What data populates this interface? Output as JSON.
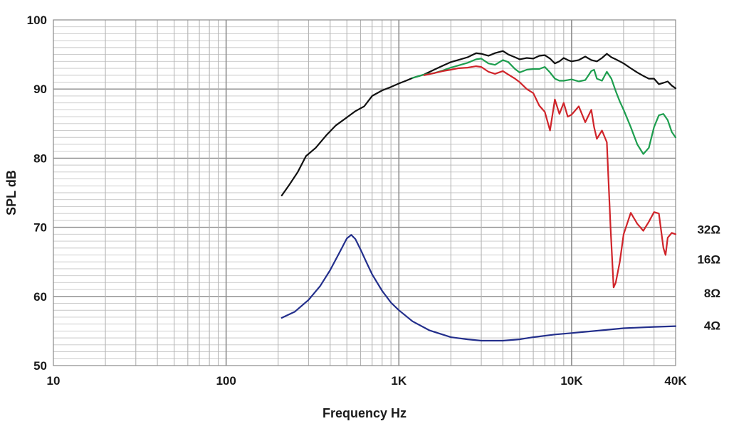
{
  "chart_data": {
    "type": "line",
    "xlabel": "Frequency Hz",
    "ylabel": "SPL dB",
    "xscale": "log",
    "xlim": [
      10,
      40000
    ],
    "ylim": [
      50,
      100
    ],
    "grid": true,
    "x_tick_labels": [
      {
        "value": 10,
        "label": "10"
      },
      {
        "value": 100,
        "label": "100"
      },
      {
        "value": 1000,
        "label": "1K"
      },
      {
        "value": 10000,
        "label": "10K"
      },
      {
        "value": 40000,
        "label": "40K"
      }
    ],
    "y_tick_labels": [
      {
        "value": 50,
        "label": "50"
      },
      {
        "value": 60,
        "label": "60"
      },
      {
        "value": 70,
        "label": "70"
      },
      {
        "value": 80,
        "label": "80"
      },
      {
        "value": 90,
        "label": "90"
      },
      {
        "value": 100,
        "label": "100"
      }
    ],
    "right_labels": [
      {
        "text": "32Ω",
        "value": 69.7
      },
      {
        "text": "16Ω",
        "value": 65.4
      },
      {
        "text": "8Ω",
        "value": 60.5
      },
      {
        "text": "4Ω",
        "value": 55.8
      }
    ],
    "series": [
      {
        "color": "#111111",
        "x": [
          210,
          230,
          260,
          290,
          330,
          380,
          430,
          500,
          560,
          630,
          700,
          800,
          900,
          1000,
          1100,
          1200,
          1400,
          1600,
          1800,
          2000,
          2200,
          2500,
          2800,
          3000,
          3300,
          3600,
          4000,
          4300,
          4700,
          5000,
          5500,
          6000,
          6500,
          7000,
          7500,
          8000,
          8500,
          9000,
          9500,
          10000,
          11000,
          12000,
          13000,
          14000,
          15000,
          16000,
          17000,
          18000,
          19000,
          20000,
          22000,
          24000,
          26000,
          28000,
          30000,
          32000,
          34000,
          36000,
          38000,
          40000
        ],
        "y": [
          74.6,
          76.0,
          78.0,
          80.3,
          81.5,
          83.3,
          84.7,
          85.9,
          86.8,
          87.5,
          89.0,
          89.8,
          90.3,
          90.8,
          91.2,
          91.6,
          92.1,
          92.8,
          93.4,
          93.9,
          94.2,
          94.6,
          95.2,
          95.1,
          94.8,
          95.2,
          95.5,
          95.0,
          94.6,
          94.3,
          94.5,
          94.4,
          94.8,
          94.9,
          94.4,
          93.7,
          94.0,
          94.5,
          94.2,
          94.0,
          94.2,
          94.7,
          94.2,
          94.0,
          94.5,
          95.1,
          94.6,
          94.3,
          94.0,
          93.7,
          93.0,
          92.4,
          91.9,
          91.5,
          91.5,
          90.7,
          90.9,
          91.1,
          90.5,
          90.1
        ]
      },
      {
        "color": "#1e9e4f",
        "x": [
          1200,
          1400,
          1600,
          1800,
          2000,
          2200,
          2500,
          2800,
          3000,
          3300,
          3600,
          4000,
          4300,
          4700,
          5000,
          5500,
          6000,
          6500,
          7000,
          7500,
          8000,
          8500,
          9000,
          9500,
          10000,
          11000,
          12000,
          13000,
          13500,
          14000,
          15000,
          16000,
          17000,
          18000,
          19000,
          20000,
          22000,
          24000,
          26000,
          28000,
          30000,
          32000,
          34000,
          36000,
          38000,
          40000
        ],
        "y": [
          91.6,
          92.1,
          92.3,
          92.7,
          93.1,
          93.4,
          93.8,
          94.3,
          94.4,
          93.7,
          93.5,
          94.2,
          93.9,
          92.9,
          92.4,
          92.8,
          92.9,
          92.9,
          93.2,
          92.4,
          91.5,
          91.2,
          91.2,
          91.3,
          91.4,
          91.1,
          91.3,
          92.6,
          92.8,
          91.5,
          91.2,
          92.5,
          91.5,
          89.7,
          88.2,
          87.0,
          84.5,
          82.0,
          80.6,
          81.5,
          84.5,
          86.2,
          86.4,
          85.5,
          83.8,
          83.0
        ]
      },
      {
        "color": "#d0242a",
        "x": [
          1400,
          1600,
          1800,
          2000,
          2200,
          2500,
          2800,
          3000,
          3300,
          3600,
          4000,
          4300,
          4700,
          5000,
          5500,
          6000,
          6500,
          7000,
          7500,
          8000,
          8500,
          9000,
          9500,
          10000,
          11000,
          12000,
          13000,
          13500,
          14000,
          15000,
          16000,
          16800,
          17500,
          18000,
          19000,
          20000,
          22000,
          24000,
          26000,
          28000,
          30000,
          32000,
          34000,
          35000,
          36000,
          38000,
          40000
        ],
        "y": [
          92.0,
          92.3,
          92.6,
          92.8,
          93.0,
          93.1,
          93.3,
          93.2,
          92.5,
          92.2,
          92.6,
          92.1,
          91.5,
          91.0,
          90.0,
          89.4,
          87.6,
          86.7,
          84.0,
          88.5,
          86.4,
          88.0,
          86.0,
          86.3,
          87.5,
          85.2,
          87.0,
          84.5,
          82.8,
          84.0,
          82.3,
          70.0,
          61.3,
          62.0,
          65.0,
          69.0,
          72.1,
          70.5,
          69.5,
          70.8,
          72.2,
          72.0,
          67.0,
          66.0,
          68.5,
          69.2,
          69.0
        ]
      },
      {
        "color": "#232f8c",
        "x": [
          210,
          250,
          300,
          350,
          400,
          450,
          500,
          530,
          560,
          600,
          650,
          700,
          800,
          900,
          1000,
          1200,
          1500,
          2000,
          2500,
          3000,
          3500,
          4000,
          5000,
          6000,
          8000,
          10000,
          15000,
          20000,
          30000,
          40000
        ],
        "y": [
          56.9,
          57.8,
          59.5,
          61.5,
          63.8,
          66.2,
          68.4,
          68.9,
          68.3,
          66.8,
          64.9,
          63.2,
          60.8,
          59.1,
          58.0,
          56.4,
          55.1,
          54.1,
          53.8,
          53.6,
          53.6,
          53.6,
          53.8,
          54.1,
          54.5,
          54.7,
          55.1,
          55.4,
          55.6,
          55.7
        ]
      }
    ]
  }
}
